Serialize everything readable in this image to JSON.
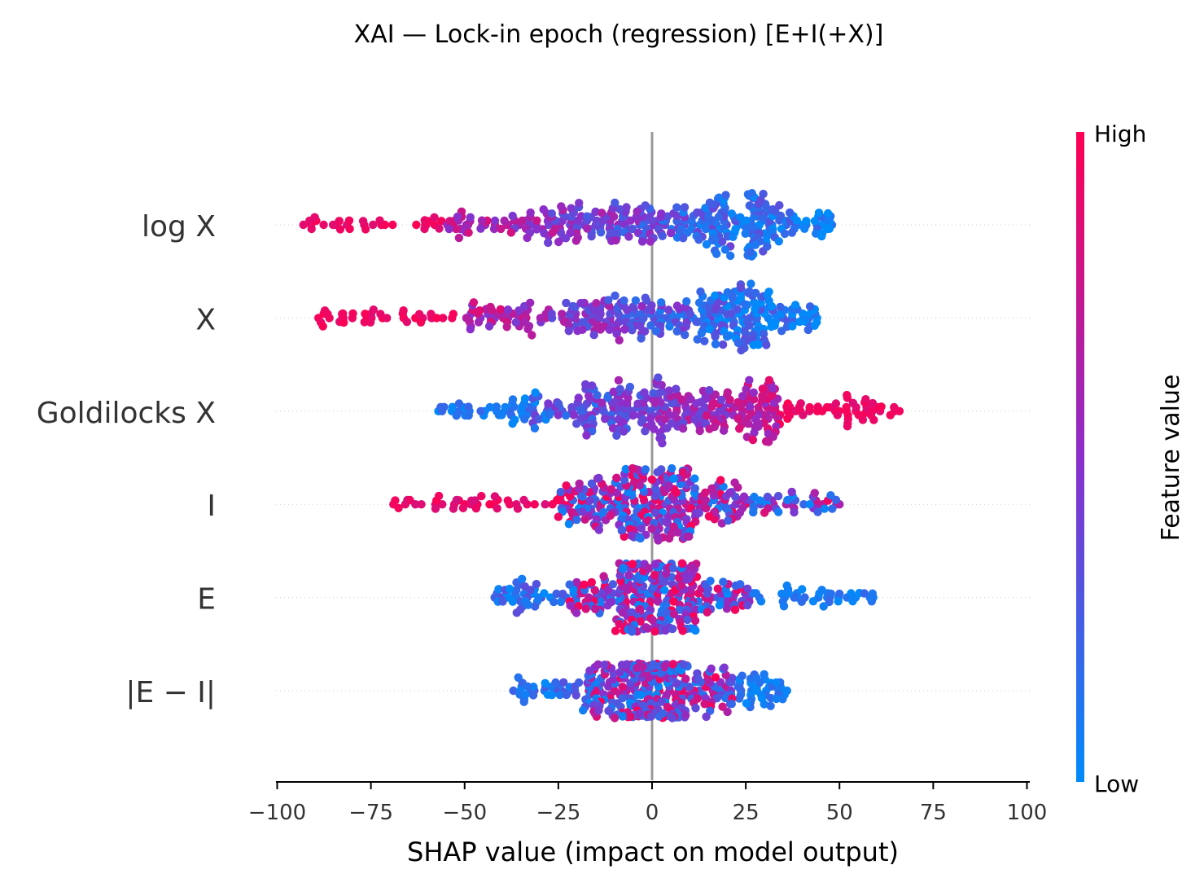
{
  "chart_data": {
    "type": "scatter",
    "subtype": "shap-beeswarm",
    "title": "XAI — Lock-in epoch (regression) [E+I(+X)]",
    "xlabel": "SHAP value (impact on model output)",
    "ylabel": "",
    "xlim": [
      -100,
      100
    ],
    "x_ticks": [
      -100,
      -75,
      -50,
      -25,
      0,
      25,
      50,
      75,
      100
    ],
    "x_tick_labels": [
      "−100",
      "−75",
      "−50",
      "−25",
      "0",
      "25",
      "50",
      "75",
      "100"
    ],
    "grid": false,
    "features": [
      {
        "name": "log X",
        "min": -93,
        "max": 48,
        "q10": -55,
        "q25": -28,
        "median": 0,
        "q75": 24,
        "q90": 33,
        "peak": 25,
        "trend": -1,
        "half_width": 2.8
      },
      {
        "name": "X",
        "min": -89,
        "max": 44,
        "q10": -50,
        "q25": -22,
        "median": 4,
        "q75": 23,
        "q90": 32,
        "peak": 22,
        "trend": -1,
        "half_width": 3.0
      },
      {
        "name": "Goldilocks X",
        "min": -57,
        "max": 66,
        "q10": -35,
        "q25": -18,
        "median": 2,
        "q75": 23,
        "q90": 34,
        "peak": 23,
        "trend": 1,
        "half_width": 3.0
      },
      {
        "name": "I",
        "min": -69,
        "max": 50,
        "q10": -25,
        "q25": -10,
        "median": 1,
        "q75": 12,
        "q90": 25,
        "peak": 0,
        "trend": 0,
        "half_width": 3.2
      },
      {
        "name": "E",
        "min": -42,
        "max": 59,
        "q10": -22,
        "q25": -9,
        "median": 1,
        "q75": 11,
        "q90": 26,
        "peak": 0,
        "trend": 0,
        "half_width": 3.0
      },
      {
        "name": "|E − I|",
        "min": -37,
        "max": 36,
        "q10": -18,
        "q25": -8,
        "median": 1,
        "q75": 9,
        "q90": 22,
        "peak": -3,
        "trend": 0,
        "half_width": 2.4
      }
    ],
    "colorbar": {
      "label": "Feature value",
      "high_label": "High",
      "low_label": "Low",
      "high_color": "#ff0052",
      "low_color": "#008bfb"
    }
  }
}
